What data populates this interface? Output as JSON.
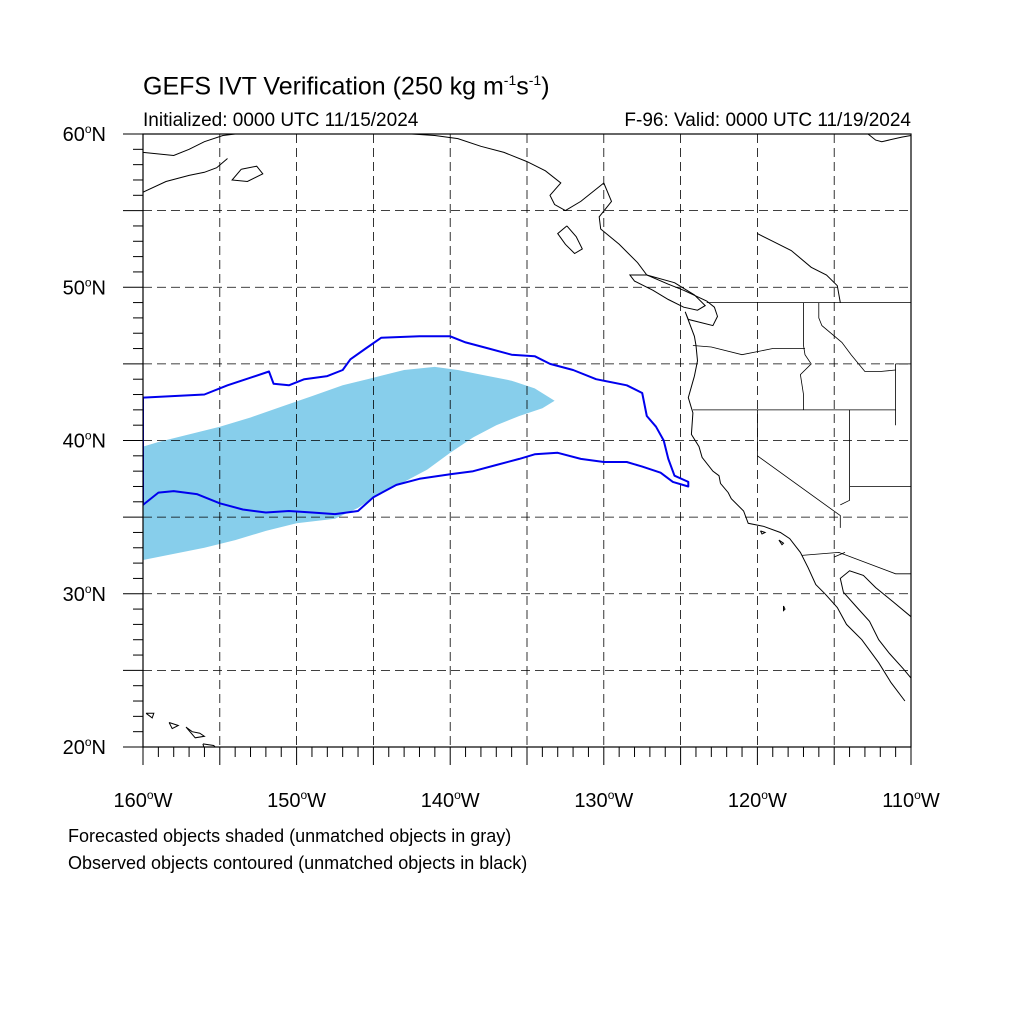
{
  "title": {
    "main": "GEFS IVT Verification (250 kg m",
    "exp1": "-1",
    "mid": "s",
    "exp2": "-1",
    "close": ")"
  },
  "init_text": "Initialized: 0000 UTC 11/15/2024",
  "valid_text": "F-96: Valid: 0000 UTC 11/19/2024",
  "footnotes": {
    "line1": "Forecasted objects shaded (unmatched objects in gray)",
    "line2": "Observed objects contoured (unmatched objects in black)"
  },
  "colors": {
    "forecast_fill": "#87ceeb",
    "observed_contour": "#0000ee",
    "coastline": "#000000",
    "grid": "#000000"
  },
  "map_extent": {
    "lon_min": -160,
    "lon_max": -110,
    "lat_min": 20,
    "lat_max": 60
  },
  "lat_labels": [
    {
      "lat": 60,
      "text": "60",
      "hemi": "N"
    },
    {
      "lat": 50,
      "text": "50",
      "hemi": "N"
    },
    {
      "lat": 40,
      "text": "40",
      "hemi": "N"
    },
    {
      "lat": 30,
      "text": "30",
      "hemi": "N"
    },
    {
      "lat": 20,
      "text": "20",
      "hemi": "N"
    }
  ],
  "lon_labels": [
    {
      "lon": -160,
      "text": "160",
      "hemi": "W"
    },
    {
      "lon": -150,
      "text": "150",
      "hemi": "W"
    },
    {
      "lon": -140,
      "text": "140",
      "hemi": "W"
    },
    {
      "lon": -130,
      "text": "130",
      "hemi": "W"
    },
    {
      "lon": -120,
      "text": "120",
      "hemi": "W"
    },
    {
      "lon": -110,
      "text": "110",
      "hemi": "W"
    }
  ],
  "grid": {
    "lat_step": 5,
    "lon_step": 5,
    "style": "dashed"
  },
  "forecast_object": {
    "label": "forecast IVT object (matched)",
    "outline_lonlat": [
      [
        -160,
        39.6
      ],
      [
        -159,
        39.9
      ],
      [
        -157,
        40.4
      ],
      [
        -155,
        40.9
      ],
      [
        -153,
        41.5
      ],
      [
        -151,
        42.2
      ],
      [
        -149,
        42.9
      ],
      [
        -147,
        43.6
      ],
      [
        -145,
        44.1
      ],
      [
        -143,
        44.6
      ],
      [
        -141,
        44.8
      ],
      [
        -139.5,
        44.6
      ],
      [
        -138,
        44.3
      ],
      [
        -136,
        43.9
      ],
      [
        -134.5,
        43.4
      ],
      [
        -133.2,
        42.6
      ],
      [
        -134,
        42.1
      ],
      [
        -135.5,
        41.6
      ],
      [
        -137,
        41.0
      ],
      [
        -138.5,
        40.2
      ],
      [
        -140,
        39.2
      ],
      [
        -141.5,
        38.1
      ],
      [
        -143,
        37.3
      ],
      [
        -144.5,
        36.6
      ],
      [
        -146,
        35.6
      ],
      [
        -147.5,
        34.9
      ],
      [
        -150,
        34.6
      ],
      [
        -152,
        34.1
      ],
      [
        -154,
        33.5
      ],
      [
        -156,
        33.0
      ],
      [
        -158,
        32.6
      ],
      [
        -160,
        32.2
      ]
    ]
  },
  "observed_object": {
    "label": "observed IVT object (matched)",
    "outline_lonlat": [
      [
        -160,
        42.8
      ],
      [
        -156,
        43.0
      ],
      [
        -154.5,
        43.6
      ],
      [
        -153,
        44.1
      ],
      [
        -151.8,
        44.5
      ],
      [
        -151.5,
        43.7
      ],
      [
        -150.5,
        43.6
      ],
      [
        -149.5,
        44.0
      ],
      [
        -148,
        44.2
      ],
      [
        -147,
        44.6
      ],
      [
        -146.5,
        45.3
      ],
      [
        -145.5,
        46.0
      ],
      [
        -144.5,
        46.7
      ],
      [
        -142,
        46.8
      ],
      [
        -140,
        46.8
      ],
      [
        -139,
        46.4
      ],
      [
        -137.5,
        46.0
      ],
      [
        -136,
        45.6
      ],
      [
        -134.5,
        45.5
      ],
      [
        -133.5,
        45.0
      ],
      [
        -132,
        44.6
      ],
      [
        -130.5,
        44.0
      ],
      [
        -128.5,
        43.6
      ],
      [
        -127.5,
        43.1
      ],
      [
        -127.2,
        41.6
      ],
      [
        -126.6,
        40.9
      ],
      [
        -126.1,
        40.0
      ],
      [
        -125.8,
        38.8
      ],
      [
        -125.4,
        37.7
      ],
      [
        -124.5,
        37.3
      ],
      [
        -124.5,
        37.0
      ],
      [
        -125.5,
        37.3
      ],
      [
        -126.3,
        37.9
      ],
      [
        -127.5,
        38.3
      ],
      [
        -128.5,
        38.6
      ],
      [
        -130,
        38.6
      ],
      [
        -131.5,
        38.8
      ],
      [
        -133,
        39.2
      ],
      [
        -134.5,
        39.1
      ],
      [
        -135.5,
        38.8
      ],
      [
        -137,
        38.4
      ],
      [
        -138.5,
        38.0
      ],
      [
        -140,
        37.8
      ],
      [
        -142,
        37.5
      ],
      [
        -143.5,
        37.1
      ],
      [
        -145,
        36.3
      ],
      [
        -146,
        35.4
      ],
      [
        -147.5,
        35.2
      ],
      [
        -149,
        35.3
      ],
      [
        -150.5,
        35.4
      ],
      [
        -152,
        35.3
      ],
      [
        -153.5,
        35.5
      ],
      [
        -155,
        35.9
      ],
      [
        -156.5,
        36.5
      ],
      [
        -158,
        36.7
      ],
      [
        -159,
        36.6
      ],
      [
        -160,
        35.8
      ]
    ]
  },
  "coastlines": [
    [
      [
        -130,
        56.8
      ],
      [
        -131.5,
        55.6
      ],
      [
        -132.5,
        55.0
      ],
      [
        -133.2,
        55.4
      ],
      [
        -133.5,
        56.0
      ],
      [
        -132.8,
        56.8
      ],
      [
        -133.8,
        57.6
      ],
      [
        -135,
        58.2
      ],
      [
        -136.5,
        58.8
      ],
      [
        -138,
        59.2
      ],
      [
        -139.5,
        59.7
      ],
      [
        -141,
        59.9
      ],
      [
        -142.5,
        60
      ]
    ],
    [
      [
        -130,
        56.8
      ],
      [
        -129.5,
        55.6
      ],
      [
        -130.3,
        54.6
      ],
      [
        -130.2,
        53.8
      ],
      [
        -129,
        52.8
      ],
      [
        -127.8,
        51.6
      ],
      [
        -127.2,
        50.8
      ],
      [
        -125.8,
        50.2
      ],
      [
        -124.8,
        49.8
      ],
      [
        -123.3,
        49.1
      ],
      [
        -122.8,
        48.7
      ],
      [
        -122.6,
        48.1
      ],
      [
        -122.9,
        47.5
      ],
      [
        -124.5,
        47.9
      ],
      [
        -124.7,
        48.4
      ],
      [
        -124.1,
        46.8
      ],
      [
        -124,
        46.2
      ],
      [
        -123.9,
        45.2
      ],
      [
        -124.1,
        44.2
      ],
      [
        -124.5,
        42.8
      ],
      [
        -124.2,
        41.8
      ],
      [
        -124.3,
        40.4
      ],
      [
        -123.8,
        39.6
      ],
      [
        -123.6,
        38.9
      ],
      [
        -122.9,
        38.0
      ],
      [
        -122.5,
        37.7
      ],
      [
        -122.4,
        37.2
      ],
      [
        -121.9,
        36.6
      ],
      [
        -121.7,
        36.2
      ],
      [
        -120.9,
        35.4
      ],
      [
        -120.6,
        34.6
      ],
      [
        -119.6,
        34.4
      ],
      [
        -118.5,
        34.0
      ],
      [
        -117.9,
        33.6
      ],
      [
        -117.2,
        32.7
      ],
      [
        -116.7,
        31.7
      ],
      [
        -116.2,
        30.6
      ],
      [
        -115.6,
        30.0
      ],
      [
        -114.8,
        29.1
      ],
      [
        -114.2,
        28.0
      ],
      [
        -113.2,
        27.0
      ],
      [
        -112.1,
        25.5
      ],
      [
        -111.3,
        24.2
      ],
      [
        -110.4,
        23.0
      ]
    ],
    [
      [
        -110,
        28.5
      ],
      [
        -111.2,
        29.5
      ],
      [
        -112.3,
        30.4
      ],
      [
        -113.1,
        31.2
      ],
      [
        -114.0,
        31.5
      ],
      [
        -114.6,
        31.0
      ],
      [
        -114.4,
        30.1
      ],
      [
        -113.6,
        29.2
      ],
      [
        -112.7,
        28.2
      ],
      [
        -112.1,
        27.0
      ],
      [
        -111.4,
        26.1
      ],
      [
        -110.5,
        25.1
      ],
      [
        -110,
        24.5
      ]
    ],
    [
      [
        -125.4,
        50.3
      ],
      [
        -124.1,
        49.5
      ],
      [
        -123.4,
        48.8
      ],
      [
        -123.9,
        48.5
      ],
      [
        -124.8,
        48.7
      ],
      [
        -125.8,
        49.2
      ],
      [
        -126.8,
        49.8
      ],
      [
        -128,
        50.4
      ],
      [
        -128.3,
        50.8
      ],
      [
        -127.2,
        50.8
      ],
      [
        -125.4,
        50.3
      ]
    ],
    [
      [
        -132.4,
        54.0
      ],
      [
        -131.8,
        53.3
      ],
      [
        -131.4,
        52.5
      ],
      [
        -131.9,
        52.2
      ],
      [
        -132.5,
        52.8
      ],
      [
        -133.0,
        53.5
      ],
      [
        -132.4,
        54.0
      ]
    ],
    [
      [
        -160,
        58.8
      ],
      [
        -158,
        58.6
      ],
      [
        -157,
        59.0
      ],
      [
        -156,
        59.5
      ],
      [
        -154.8,
        59.9
      ],
      [
        -154,
        60
      ]
    ],
    [
      [
        -160,
        56.2
      ],
      [
        -158.5,
        56.9
      ],
      [
        -157,
        57.3
      ],
      [
        -156,
        57.5
      ],
      [
        -155.2,
        57.8
      ],
      [
        -154.5,
        58.4
      ]
    ],
    [
      [
        -153.6,
        57.7
      ],
      [
        -152.6,
        57.9
      ],
      [
        -152.2,
        57.4
      ],
      [
        -153.2,
        56.9
      ],
      [
        -154.2,
        57.0
      ],
      [
        -153.6,
        57.7
      ]
    ],
    [
      [
        -112.8,
        60
      ],
      [
        -112.3,
        59.6
      ],
      [
        -111.9,
        59.5
      ],
      [
        -110.6,
        59.8
      ],
      [
        -110,
        59.9
      ]
    ],
    [
      [
        -120,
        53.5
      ],
      [
        -119,
        53.0
      ],
      [
        -117.8,
        52.4
      ],
      [
        -116.5,
        51.3
      ],
      [
        -115.5,
        50.8
      ],
      [
        -114.8,
        50.1
      ],
      [
        -114.6,
        49.0
      ]
    ],
    [
      [
        -156.1,
        20.2
      ],
      [
        -155.9,
        19.5
      ],
      [
        -155.3,
        19.4
      ],
      [
        -154.9,
        19.6
      ],
      [
        -155.4,
        20.1
      ],
      [
        -156.1,
        20.2
      ]
    ],
    [
      [
        -157.2,
        21.3
      ],
      [
        -156.8,
        21.0
      ],
      [
        -156.3,
        20.9
      ],
      [
        -156.0,
        20.7
      ],
      [
        -156.6,
        20.6
      ],
      [
        -157.2,
        21.3
      ]
    ],
    [
      [
        -158.3,
        21.6
      ],
      [
        -157.7,
        21.4
      ],
      [
        -158.1,
        21.2
      ],
      [
        -158.3,
        21.6
      ]
    ],
    [
      [
        -159.8,
        22.2
      ],
      [
        -159.3,
        22.2
      ],
      [
        -159.4,
        21.9
      ],
      [
        -159.8,
        22.2
      ]
    ],
    [
      [
        -118.6,
        33.5
      ],
      [
        -118.3,
        33.3
      ],
      [
        -118.4,
        33.2
      ],
      [
        -118.6,
        33.5
      ]
    ],
    [
      [
        -119.8,
        34.1
      ],
      [
        -119.5,
        34.0
      ],
      [
        -119.7,
        33.9
      ],
      [
        -119.8,
        34.1
      ]
    ],
    [
      [
        -118.3,
        29.2
      ],
      [
        -118.2,
        29.0
      ],
      [
        -118.3,
        28.9
      ],
      [
        -118.3,
        29.2
      ]
    ]
  ],
  "borders": [
    [
      [
        -123.3,
        49.0
      ],
      [
        -110,
        49.0
      ]
    ],
    [
      [
        -117.0,
        49.0
      ],
      [
        -117.0,
        46.2
      ],
      [
        -116.9,
        45.6
      ],
      [
        -116.5,
        45.0
      ],
      [
        -117.2,
        44.3
      ],
      [
        -117.0,
        43.0
      ],
      [
        -117.0,
        42.0
      ]
    ],
    [
      [
        -124.2,
        46.2
      ],
      [
        -123.0,
        46.1
      ],
      [
        -121,
        45.6
      ],
      [
        -119,
        46.0
      ],
      [
        -116.9,
        46.0
      ]
    ],
    [
      [
        -124.2,
        42.0
      ],
      [
        -111.0,
        42.0
      ]
    ],
    [
      [
        -120.0,
        42.0
      ],
      [
        -120.0,
        39.0
      ],
      [
        -114.6,
        35.1
      ],
      [
        -114.6,
        34.3
      ]
    ],
    [
      [
        -114.0,
        42.0
      ],
      [
        -114.0,
        37.0
      ],
      [
        -114.0,
        36.1
      ],
      [
        -114.6,
        35.8
      ]
    ],
    [
      [
        -114.0,
        37.0
      ],
      [
        -110,
        37.0
      ]
    ],
    [
      [
        -111.0,
        45.0
      ],
      [
        -110,
        45.0
      ]
    ],
    [
      [
        -111.0,
        45.0
      ],
      [
        -111.0,
        41.0
      ]
    ],
    [
      [
        -117.1,
        32.5
      ],
      [
        -114.7,
        32.7
      ],
      [
        -111.0,
        31.3
      ],
      [
        -110,
        31.3
      ]
    ],
    [
      [
        -116.0,
        49.0
      ],
      [
        -116.0,
        48.0
      ],
      [
        -115.8,
        47.5
      ],
      [
        -114.5,
        46.4
      ],
      [
        -113.9,
        45.6
      ],
      [
        -113,
        44.5
      ],
      [
        -112.0,
        44.5
      ],
      [
        -111.0,
        44.6
      ]
    ],
    [
      [
        -115.0,
        32.4
      ],
      [
        -114.3,
        32.7
      ]
    ]
  ]
}
